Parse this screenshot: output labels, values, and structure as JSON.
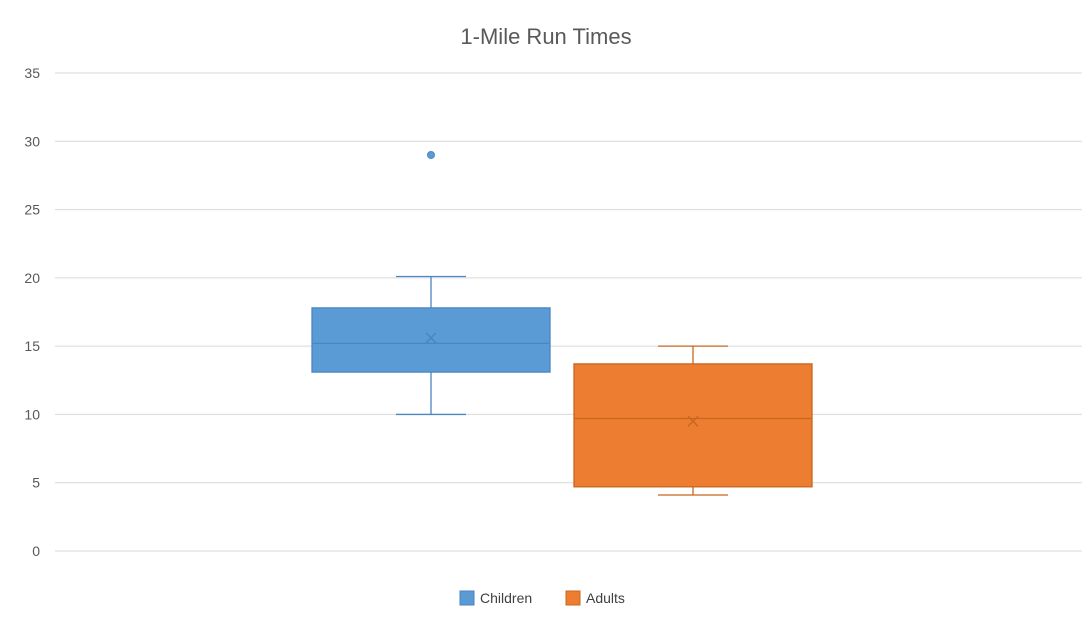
{
  "chart_data": {
    "type": "boxplot",
    "title": "1-Mile Run Times",
    "xlabel": "",
    "ylabel": "",
    "ylim": [
      0,
      35
    ],
    "yticks": [
      0,
      5,
      10,
      15,
      20,
      25,
      30,
      35
    ],
    "grid": true,
    "legend_position": "bottom",
    "series": [
      {
        "name": "Children",
        "color": "#5b9bd5",
        "stroke": "#4a86c1",
        "min": 10,
        "q1": 13.1,
        "median": 15.2,
        "q3": 17.8,
        "max": 20.1,
        "mean": 15.6,
        "outliers": [
          29
        ]
      },
      {
        "name": "Adults",
        "color": "#ed7d31",
        "stroke": "#c8661f",
        "min": 4.1,
        "q1": 4.7,
        "median": 9.7,
        "q3": 13.7,
        "max": 15,
        "mean": 9.5,
        "outliers": []
      }
    ]
  }
}
